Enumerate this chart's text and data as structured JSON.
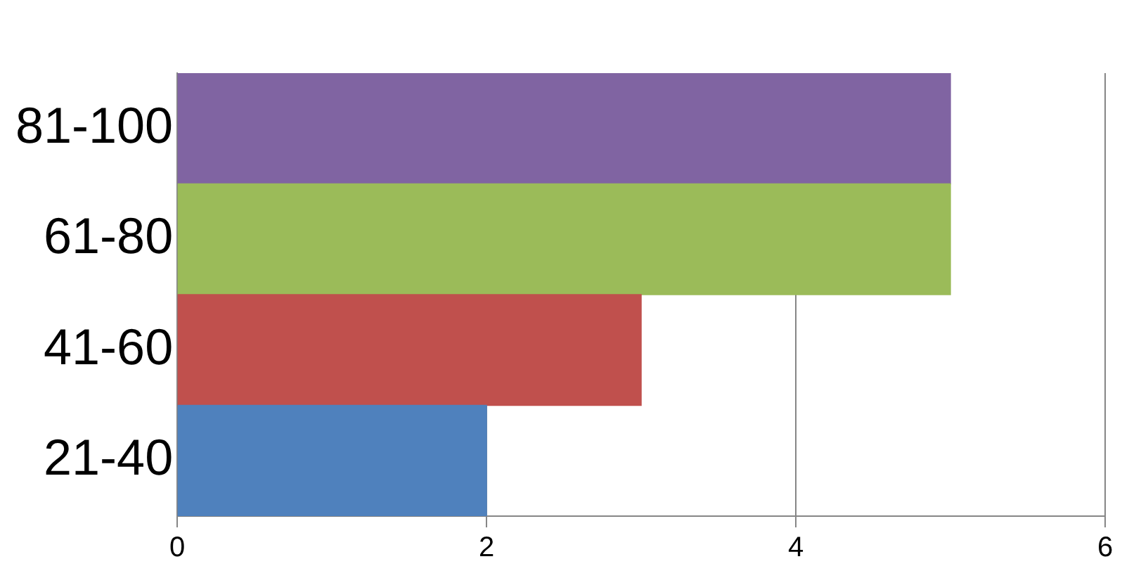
{
  "chart_data": {
    "type": "bar",
    "orientation": "horizontal",
    "categories": [
      "81-100",
      "61-80",
      "41-60",
      "21-40"
    ],
    "values": [
      5,
      5,
      3,
      2
    ],
    "colors": [
      "#8064a2",
      "#9bbb59",
      "#c0504d",
      "#4f81bd"
    ],
    "xlim": [
      0,
      6
    ],
    "xticks": [
      0,
      2,
      4,
      6
    ],
    "grid": "x",
    "legend": false
  }
}
